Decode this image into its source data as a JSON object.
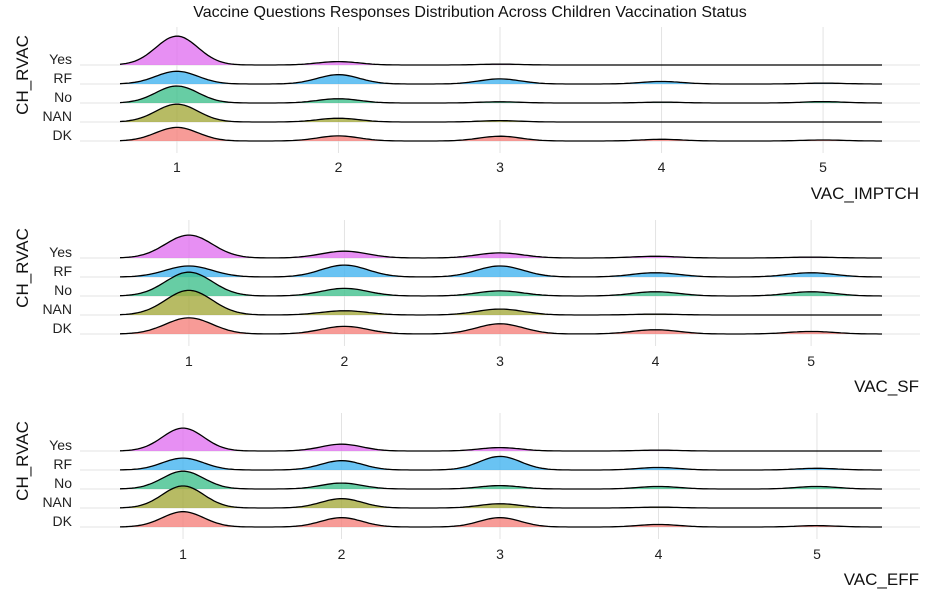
{
  "colors": {
    "Yes": "#E070F0",
    "RF": "#3FB2F0",
    "No": "#3CBF8A",
    "NAN": "#A3A838",
    "DK": "#F57F7A"
  },
  "chart_data": [
    {
      "type": "ridgeline",
      "title": "Vaccine Questions Responses Distribution Across Children Vaccination Status",
      "xlabel": "VAC_IMPTCH",
      "ylabel": "CH_RVAC",
      "xticks": [
        1,
        2,
        3,
        4,
        5
      ],
      "xlim": [
        0.4,
        5.6
      ],
      "categories": [
        "Yes",
        "RF",
        "No",
        "NAN",
        "DK"
      ],
      "series": [
        {
          "name": "Yes",
          "peaks": [
            [
              1,
              1.7
            ],
            [
              2,
              0.2
            ],
            [
              3,
              0.05
            ]
          ]
        },
        {
          "name": "RF",
          "peaks": [
            [
              1,
              0.75
            ],
            [
              2,
              0.55
            ],
            [
              3,
              0.3
            ],
            [
              4,
              0.15
            ],
            [
              5,
              0.05
            ]
          ]
        },
        {
          "name": "No",
          "peaks": [
            [
              1,
              1.0
            ],
            [
              2,
              0.25
            ],
            [
              3,
              0.07
            ],
            [
              4,
              0.05
            ],
            [
              5,
              0.08
            ]
          ]
        },
        {
          "name": "NAN",
          "peaks": [
            [
              1,
              1.05
            ],
            [
              2,
              0.22
            ],
            [
              3,
              0.08
            ]
          ]
        },
        {
          "name": "DK",
          "peaks": [
            [
              1,
              0.8
            ],
            [
              2,
              0.3
            ],
            [
              3,
              0.28
            ],
            [
              4,
              0.1
            ],
            [
              5,
              0.06
            ]
          ]
        }
      ]
    },
    {
      "type": "ridgeline",
      "title": "",
      "xlabel": "VAC_SF",
      "ylabel": "CH_RVAC",
      "xticks": [
        1,
        2,
        3,
        4,
        5
      ],
      "xlim": [
        0.3,
        5.7
      ],
      "categories": [
        "Yes",
        "RF",
        "No",
        "NAN",
        "DK"
      ],
      "series": [
        {
          "name": "Yes",
          "peaks": [
            [
              1,
              1.35
            ],
            [
              2,
              0.4
            ],
            [
              3,
              0.3
            ],
            [
              4,
              0.1
            ],
            [
              5,
              0.05
            ]
          ]
        },
        {
          "name": "RF",
          "peaks": [
            [
              1,
              0.65
            ],
            [
              2,
              0.7
            ],
            [
              3,
              0.65
            ],
            [
              4,
              0.25
            ],
            [
              5,
              0.25
            ]
          ]
        },
        {
          "name": "No",
          "peaks": [
            [
              1,
              1.4
            ],
            [
              2,
              0.45
            ],
            [
              3,
              0.3
            ],
            [
              4,
              0.25
            ],
            [
              5,
              0.25
            ]
          ]
        },
        {
          "name": "NAN",
          "peaks": [
            [
              1,
              1.45
            ],
            [
              2,
              0.25
            ],
            [
              3,
              0.35
            ],
            [
              4,
              0.05
            ]
          ]
        },
        {
          "name": "DK",
          "peaks": [
            [
              1,
              0.95
            ],
            [
              2,
              0.45
            ],
            [
              3,
              0.6
            ],
            [
              4,
              0.25
            ],
            [
              5,
              0.15
            ]
          ]
        }
      ]
    },
    {
      "type": "ridgeline",
      "title": "",
      "xlabel": "VAC_EFF",
      "ylabel": "CH_RVAC",
      "xticks": [
        1,
        2,
        3,
        4,
        5
      ],
      "xlim": [
        0.35,
        5.65
      ],
      "categories": [
        "Yes",
        "RF",
        "No",
        "NAN",
        "DK"
      ],
      "series": [
        {
          "name": "Yes",
          "peaks": [
            [
              1,
              1.35
            ],
            [
              2,
              0.4
            ],
            [
              3,
              0.2
            ],
            [
              4,
              0.05
            ]
          ]
        },
        {
          "name": "RF",
          "peaks": [
            [
              1,
              0.7
            ],
            [
              2,
              0.55
            ],
            [
              3,
              0.8
            ],
            [
              4,
              0.15
            ],
            [
              5,
              0.1
            ]
          ]
        },
        {
          "name": "No",
          "peaks": [
            [
              1,
              1.05
            ],
            [
              2,
              0.35
            ],
            [
              3,
              0.2
            ],
            [
              4,
              0.15
            ],
            [
              5,
              0.15
            ]
          ]
        },
        {
          "name": "NAN",
          "peaks": [
            [
              1,
              1.3
            ],
            [
              2,
              0.55
            ],
            [
              3,
              0.25
            ],
            [
              4,
              0.05
            ]
          ]
        },
        {
          "name": "DK",
          "peaks": [
            [
              1,
              0.9
            ],
            [
              2,
              0.55
            ],
            [
              3,
              0.55
            ],
            [
              4,
              0.15
            ],
            [
              5,
              0.08
            ]
          ]
        }
      ]
    }
  ]
}
